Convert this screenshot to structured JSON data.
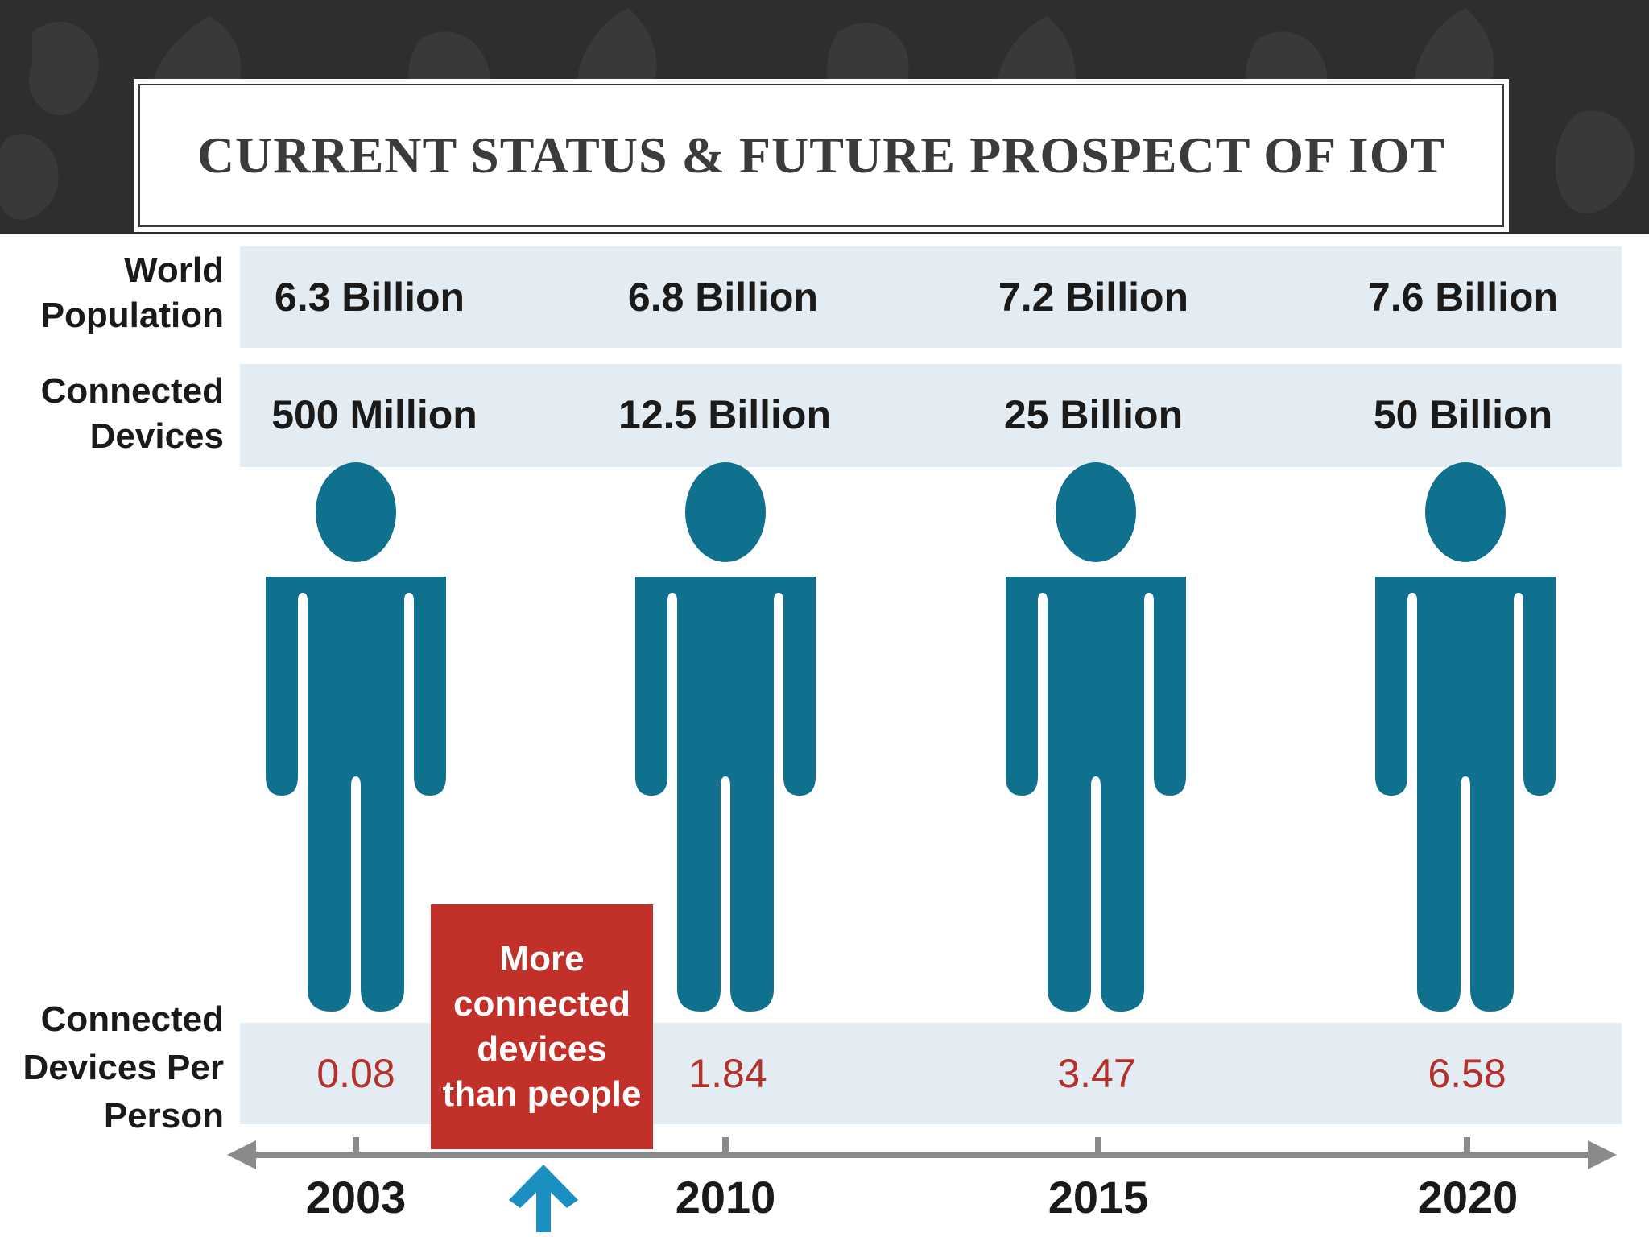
{
  "title": "CURRENT STATUS  &  FUTURE PROSPECT OF IOT",
  "row_labels": {
    "population": "World Population",
    "devices": "Connected Devices",
    "per_person": "Connected Devices Per Person"
  },
  "columns": [
    {
      "year": "2003",
      "population": "6.3 Billion",
      "devices": "500 Million",
      "per_person": "0.08"
    },
    {
      "year": "2010",
      "population": "6.8 Billion",
      "devices": "12.5 Billion",
      "per_person": "1.84"
    },
    {
      "year": "2015",
      "population": "7.2 Billion",
      "devices": "25 Billion",
      "per_person": "3.47"
    },
    {
      "year": "2020",
      "population": "7.6 Billion",
      "devices": "50 Billion",
      "per_person": "6.58"
    }
  ],
  "callout": "More connected devices than people",
  "colors": {
    "figure": "#10718f",
    "band": "#e2ecf2",
    "callout": "#c2302a",
    "ratio_text": "#b5302a",
    "arrow": "#1b8fc0",
    "axis": "#8a8a8a",
    "header_bg": "#2f2d2d"
  },
  "icons": {
    "figure": "person-icon",
    "arrow": "up-arrow-icon"
  }
}
